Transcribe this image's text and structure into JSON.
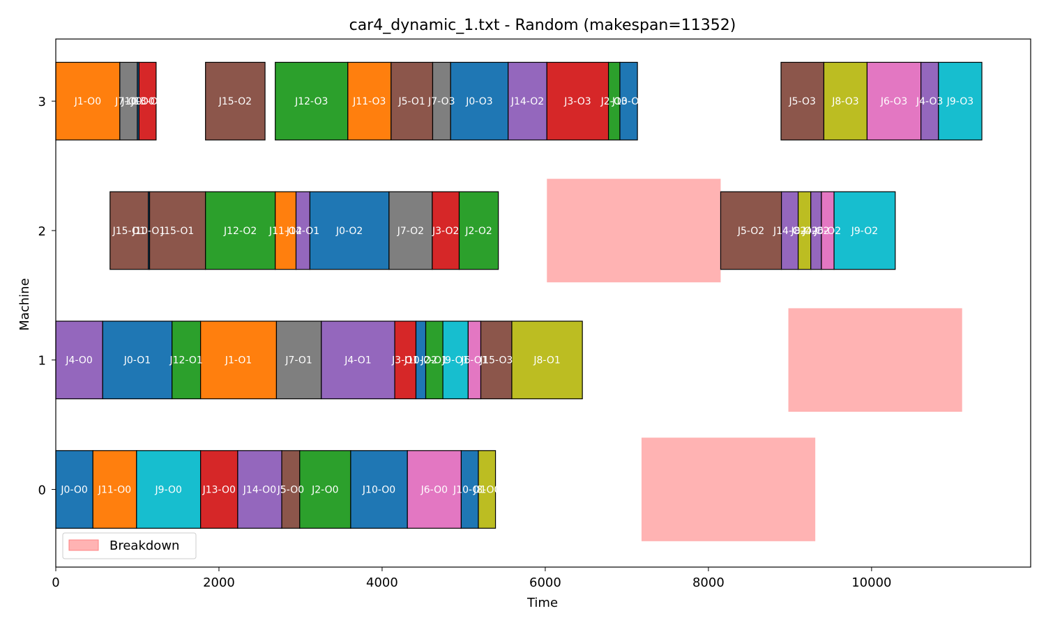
{
  "chart_data": {
    "type": "gantt",
    "title": "car4_dynamic_1.txt - Random (makespan=11352)",
    "xlabel": "Time",
    "ylabel": "Machine",
    "xlim": [
      0,
      11950
    ],
    "ylim": [
      -0.6,
      3.48
    ],
    "xticks": [
      0,
      2000,
      4000,
      6000,
      8000,
      10000
    ],
    "yticks": [
      0,
      1,
      2,
      3
    ],
    "grid": false,
    "legend": {
      "placement": "lower-left",
      "entries": [
        "Breakdown"
      ]
    },
    "colors": {
      "J0": "#1f77b4",
      "J1": "#ff7f0e",
      "J2": "#2ca02c",
      "J3": "#d62728",
      "J4": "#9467bd",
      "J5": "#8c564b",
      "J6": "#e377c2",
      "J7": "#7f7f7f",
      "J8": "#bcbd22",
      "J9": "#17becf",
      "J10": "#1f77b4",
      "J11": "#ff7f0e",
      "J12": "#2ca02c",
      "J13": "#d62728",
      "J14": "#9467bd",
      "J15": "#8c564b",
      "breakdown": "#ffb3b3"
    },
    "breakdowns": [
      {
        "machine": 0,
        "start": 7180,
        "end": 9310
      },
      {
        "machine": 1,
        "start": 8980,
        "end": 11110
      },
      {
        "machine": 2,
        "start": 6020,
        "end": 8150
      }
    ],
    "operations": [
      {
        "machine": 0,
        "job": "J0",
        "label": "J0-O0",
        "start": 0,
        "end": 455
      },
      {
        "machine": 0,
        "job": "J11",
        "label": "J11-O0",
        "start": 455,
        "end": 990
      },
      {
        "machine": 0,
        "job": "J9",
        "label": "J9-O0",
        "start": 990,
        "end": 1775
      },
      {
        "machine": 0,
        "job": "J13",
        "label": "J13-O0",
        "start": 1775,
        "end": 2230
      },
      {
        "machine": 0,
        "job": "J14",
        "label": "J14-O0",
        "start": 2230,
        "end": 2770
      },
      {
        "machine": 0,
        "job": "J5",
        "label": "J5-O0",
        "start": 2770,
        "end": 2990
      },
      {
        "machine": 0,
        "job": "J2",
        "label": "J2-O0",
        "start": 2990,
        "end": 3615
      },
      {
        "machine": 0,
        "job": "J10",
        "label": "J10-O0",
        "start": 3615,
        "end": 4310
      },
      {
        "machine": 0,
        "job": "J6",
        "label": "J6-O0",
        "start": 4310,
        "end": 4970
      },
      {
        "machine": 0,
        "job": "J10",
        "label": "J10-O1",
        "start": 4970,
        "end": 5180
      },
      {
        "machine": 0,
        "job": "J8",
        "label": "J8-O0",
        "start": 5180,
        "end": 5390
      },
      {
        "machine": 1,
        "job": "J4",
        "label": "J4-O0",
        "start": 0,
        "end": 575
      },
      {
        "machine": 1,
        "job": "J0",
        "label": "J0-O1",
        "start": 575,
        "end": 1425
      },
      {
        "machine": 1,
        "job": "J12",
        "label": "J12-O1",
        "start": 1425,
        "end": 1775
      },
      {
        "machine": 1,
        "job": "J1",
        "label": "J1-O1",
        "start": 1775,
        "end": 2705
      },
      {
        "machine": 1,
        "job": "J7",
        "label": "J7-O1",
        "start": 2705,
        "end": 3255
      },
      {
        "machine": 1,
        "job": "J4",
        "label": "J4-O1",
        "start": 3255,
        "end": 4155
      },
      {
        "machine": 1,
        "job": "J3",
        "label": "J3-O1",
        "start": 4155,
        "end": 4415
      },
      {
        "machine": 1,
        "job": "J10",
        "label": "J10-O2",
        "start": 4415,
        "end": 4535
      },
      {
        "machine": 1,
        "job": "J2",
        "label": "J2-O1",
        "start": 4535,
        "end": 4745
      },
      {
        "machine": 1,
        "job": "J9",
        "label": "J9-O1",
        "start": 4745,
        "end": 5055
      },
      {
        "machine": 1,
        "job": "J6",
        "label": "J6-O1",
        "start": 5055,
        "end": 5210
      },
      {
        "machine": 1,
        "job": "J15",
        "label": "J15-O3",
        "start": 5210,
        "end": 5590
      },
      {
        "machine": 1,
        "job": "J8",
        "label": "J8-O1",
        "start": 5590,
        "end": 6455
      },
      {
        "machine": 2,
        "job": "J15",
        "label": "J15-O1",
        "start": 665,
        "end": 1135
      },
      {
        "machine": 2,
        "job": "J10",
        "label": "J10-O1",
        "start": 1135,
        "end": 1150
      },
      {
        "machine": 2,
        "job": "J15",
        "label": "J15-O1",
        "start": 1150,
        "end": 1835
      },
      {
        "machine": 2,
        "job": "J12",
        "label": "J12-O2",
        "start": 1835,
        "end": 2690
      },
      {
        "machine": 2,
        "job": "J11",
        "label": "J11-O2",
        "start": 2690,
        "end": 2945
      },
      {
        "machine": 2,
        "job": "J14",
        "label": "J14-O1",
        "start": 2945,
        "end": 3115
      },
      {
        "machine": 2,
        "job": "J0",
        "label": "J0-O2",
        "start": 3115,
        "end": 4085
      },
      {
        "machine": 2,
        "job": "J7",
        "label": "J7-O2",
        "start": 4085,
        "end": 4615
      },
      {
        "machine": 2,
        "job": "J3",
        "label": "J3-O2",
        "start": 4615,
        "end": 4945
      },
      {
        "machine": 2,
        "job": "J2",
        "label": "J2-O2",
        "start": 4945,
        "end": 5425
      },
      {
        "machine": 2,
        "job": "J5",
        "label": "J5-O2",
        "start": 8150,
        "end": 8895
      },
      {
        "machine": 2,
        "job": "J14",
        "label": "J14-O2",
        "start": 8895,
        "end": 9100
      },
      {
        "machine": 2,
        "job": "J8",
        "label": "J8-O2",
        "start": 9100,
        "end": 9255
      },
      {
        "machine": 2,
        "job": "J4",
        "label": "J4-O2",
        "start": 9255,
        "end": 9385
      },
      {
        "machine": 2,
        "job": "J6",
        "label": "J6-O2",
        "start": 9385,
        "end": 9540
      },
      {
        "machine": 2,
        "job": "J9",
        "label": "J9-O2",
        "start": 9540,
        "end": 10290
      },
      {
        "machine": 3,
        "job": "J1",
        "label": "J1-O0",
        "start": 0,
        "end": 785
      },
      {
        "machine": 3,
        "job": "J7",
        "label": "J7-O0",
        "start": 785,
        "end": 1000
      },
      {
        "machine": 3,
        "job": "J10",
        "label": "J10-O0",
        "start": 1000,
        "end": 1020
      },
      {
        "machine": 3,
        "job": "J13",
        "label": "J13-O0",
        "start": 1020,
        "end": 1230
      },
      {
        "machine": 3,
        "job": "J15",
        "label": "J15-O2",
        "start": 1835,
        "end": 2565
      },
      {
        "machine": 3,
        "job": "J12",
        "label": "J12-O3",
        "start": 2690,
        "end": 3580
      },
      {
        "machine": 3,
        "job": "J11",
        "label": "J11-O3",
        "start": 3580,
        "end": 4110
      },
      {
        "machine": 3,
        "job": "J5",
        "label": "J5-O1",
        "start": 4110,
        "end": 4620
      },
      {
        "machine": 3,
        "job": "J7",
        "label": "J7-O3",
        "start": 4620,
        "end": 4840
      },
      {
        "machine": 3,
        "job": "J0",
        "label": "J0-O3",
        "start": 4840,
        "end": 5545
      },
      {
        "machine": 3,
        "job": "J14",
        "label": "J14-O2",
        "start": 5545,
        "end": 6020
      },
      {
        "machine": 3,
        "job": "J3",
        "label": "J3-O3",
        "start": 6020,
        "end": 6775
      },
      {
        "machine": 3,
        "job": "J2",
        "label": "J2-O3",
        "start": 6775,
        "end": 6915
      },
      {
        "machine": 3,
        "job": "J10",
        "label": "J10-O3",
        "start": 6915,
        "end": 7130
      },
      {
        "machine": 3,
        "job": "J5",
        "label": "J5-O3",
        "start": 8890,
        "end": 9415
      },
      {
        "machine": 3,
        "job": "J8",
        "label": "J8-O3",
        "start": 9415,
        "end": 9945
      },
      {
        "machine": 3,
        "job": "J6",
        "label": "J6-O3",
        "start": 9945,
        "end": 10605
      },
      {
        "machine": 3,
        "job": "J4",
        "label": "J4-O3",
        "start": 10605,
        "end": 10820
      },
      {
        "machine": 3,
        "job": "J9",
        "label": "J9-O3",
        "start": 10820,
        "end": 11352
      }
    ]
  }
}
